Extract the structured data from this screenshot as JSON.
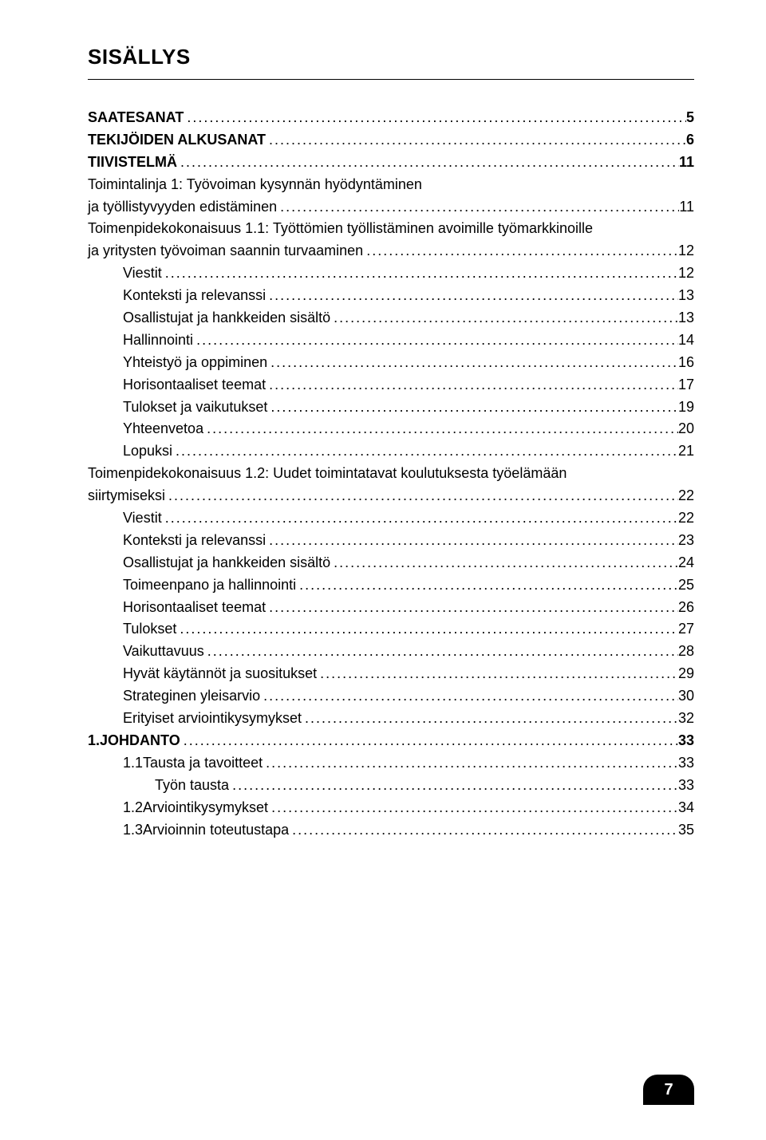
{
  "heading": "SISÄLLYS",
  "page_number": "7",
  "entries": [
    {
      "indent": 0,
      "bold": true,
      "label": "SAATESANAT",
      "page": "5"
    },
    {
      "indent": 0,
      "bold": true,
      "label": "TEKIJÖIDEN ALKUSANAT",
      "page": "6"
    },
    {
      "indent": 0,
      "bold": true,
      "label": "TIIVISTELMÄ",
      "page": "11"
    },
    {
      "indent": 0,
      "bold": false,
      "label": "Toimintalinja 1: Työvoiman kysynnän hyödyntäminen ja työllistyvyyden edistäminen",
      "page": "11",
      "wrap_after": "hyödyntäminen"
    },
    {
      "indent": 0,
      "bold": false,
      "label": "Toimenpidekokonaisuus 1.1: Työttömien työllistäminen avoimille työmarkkinoille ja yritysten työvoiman saannin turvaaminen",
      "page": "12",
      "wrap_after": "työmarkkinoille"
    },
    {
      "indent": 1,
      "bold": false,
      "label": "Viestit",
      "page": "12"
    },
    {
      "indent": 1,
      "bold": false,
      "label": "Konteksti ja relevanssi",
      "page": "13"
    },
    {
      "indent": 1,
      "bold": false,
      "label": "Osallistujat ja hankkeiden sisältö",
      "page": "13"
    },
    {
      "indent": 1,
      "bold": false,
      "label": "Hallinnointi",
      "page": "14"
    },
    {
      "indent": 1,
      "bold": false,
      "label": "Yhteistyö ja oppiminen",
      "page": "16"
    },
    {
      "indent": 1,
      "bold": false,
      "label": "Horisontaaliset teemat",
      "page": "17"
    },
    {
      "indent": 1,
      "bold": false,
      "label": "Tulokset ja vaikutukset",
      "page": "19"
    },
    {
      "indent": 1,
      "bold": false,
      "label": "Yhteenvetoa",
      "page": "20"
    },
    {
      "indent": 1,
      "bold": false,
      "label": "Lopuksi",
      "page": "21"
    },
    {
      "indent": 0,
      "bold": false,
      "label": "Toimenpidekokonaisuus 1.2: Uudet toimintatavat koulutuksesta työelämään siirtymiseksi",
      "page": "22",
      "wrap_after": "työelämään"
    },
    {
      "indent": 1,
      "bold": false,
      "label": "Viestit",
      "page": "22"
    },
    {
      "indent": 1,
      "bold": false,
      "label": "Konteksti ja relevanssi",
      "page": "23"
    },
    {
      "indent": 1,
      "bold": false,
      "label": "Osallistujat ja hankkeiden sisältö",
      "page": "24"
    },
    {
      "indent": 1,
      "bold": false,
      "label": "Toimeenpano ja hallinnointi",
      "page": "25"
    },
    {
      "indent": 1,
      "bold": false,
      "label": "Horisontaaliset teemat",
      "page": "26"
    },
    {
      "indent": 1,
      "bold": false,
      "label": "Tulokset",
      "page": "27"
    },
    {
      "indent": 1,
      "bold": false,
      "label": "Vaikuttavuus",
      "page": "28"
    },
    {
      "indent": 1,
      "bold": false,
      "label": "Hyvät käytännöt ja suositukset",
      "page": "29"
    },
    {
      "indent": 1,
      "bold": false,
      "label": "Strateginen yleisarvio",
      "page": "30"
    },
    {
      "indent": 1,
      "bold": false,
      "label": "Erityiset arviointikysymykset",
      "page": "32"
    },
    {
      "indent": 0,
      "bold": true,
      "num": "1.",
      "label": "JOHDANTO",
      "page": "33"
    },
    {
      "indent": 1,
      "bold": false,
      "num": "1.1",
      "label": "Tausta ja tavoitteet",
      "page": "33"
    },
    {
      "indent": 2,
      "bold": false,
      "label": "Työn tausta",
      "page": "33"
    },
    {
      "indent": 1,
      "bold": false,
      "num": "1.2",
      "label": "Arviointikysymykset",
      "page": "34"
    },
    {
      "indent": 1,
      "bold": false,
      "num": "1.3",
      "label": "Arvioinnin toteutustapa",
      "page": "35"
    }
  ],
  "colors": {
    "text": "#000000",
    "background": "#ffffff",
    "badge_bg": "#000000",
    "badge_fg": "#ffffff"
  },
  "typography": {
    "heading_fontsize_pt": 20,
    "body_fontsize_pt": 13
  }
}
